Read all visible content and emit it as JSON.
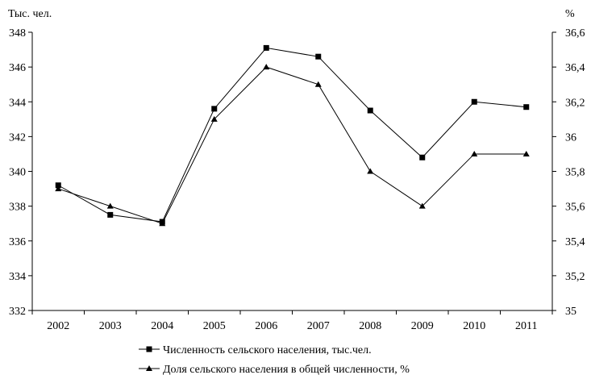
{
  "chart_data": {
    "type": "line",
    "title": "",
    "categories": [
      "2002",
      "2003",
      "2004",
      "2005",
      "2006",
      "2007",
      "2008",
      "2009",
      "2010",
      "2011"
    ],
    "y_left": {
      "label": "Тыс. чел.",
      "range": [
        332,
        348
      ],
      "ticks": [
        "332",
        "334",
        "336",
        "338",
        "340",
        "342",
        "344",
        "346",
        "348"
      ]
    },
    "y_right": {
      "label": "%",
      "range": [
        35,
        36.6
      ],
      "ticks": [
        "35",
        "35,2",
        "35,4",
        "35,6",
        "35,8",
        "36",
        "36,2",
        "36,4",
        "36,6"
      ]
    },
    "grid": false,
    "legend_position": "bottom",
    "series": [
      {
        "name": "Численность сельского населения, тыс.чел.",
        "axis": "left",
        "marker": "square",
        "color": "#000000",
        "values": [
          339.2,
          337.5,
          337.1,
          343.6,
          347.1,
          346.6,
          343.5,
          340.8,
          344.0,
          343.7
        ]
      },
      {
        "name": "Доля сельского населения в общей численности, %",
        "axis": "right",
        "marker": "triangle",
        "color": "#000000",
        "values": [
          35.7,
          35.6,
          35.5,
          36.1,
          36.4,
          36.3,
          35.8,
          35.6,
          35.9,
          35.9
        ]
      }
    ]
  }
}
